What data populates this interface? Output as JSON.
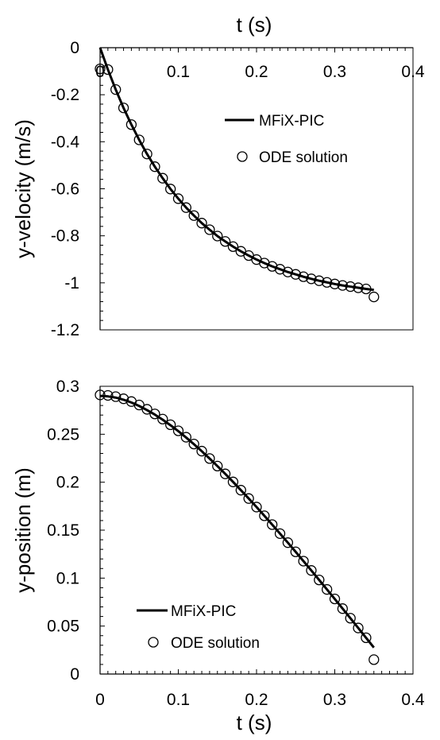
{
  "chart_data": [
    {
      "type": "line",
      "xlabel": "t (s)",
      "ylabel": "y-velocity  (m/s)",
      "x_axis_position": "top",
      "xlim": [
        0,
        0.4
      ],
      "ylim": [
        -1.2,
        0
      ],
      "x_ticks": [
        0,
        0.1,
        0.2,
        0.3,
        0.4
      ],
      "x_tick_labels": [
        "0",
        "0.1",
        "0.2",
        "0.3",
        "0.4"
      ],
      "y_ticks": [
        0,
        -0.2,
        -0.4,
        -0.6,
        -0.8,
        -1,
        -1.2
      ],
      "y_tick_labels": [
        "0",
        "-0.2",
        "-0.4",
        "-0.6",
        "-0.8",
        "-1",
        "-1.2"
      ],
      "grid": false,
      "legend_position": "top-right",
      "series": [
        {
          "name": "MFiX-PIC",
          "style": "solid-line",
          "color": "#000000",
          "x": [
            0,
            0.01,
            0.02,
            0.03,
            0.04,
            0.05,
            0.06,
            0.07,
            0.08,
            0.09,
            0.1,
            0.11,
            0.12,
            0.13,
            0.14,
            0.15,
            0.16,
            0.17,
            0.18,
            0.19,
            0.2,
            0.21,
            0.22,
            0.23,
            0.24,
            0.25,
            0.26,
            0.27,
            0.28,
            0.29,
            0.3,
            0.31,
            0.32,
            0.33,
            0.34,
            0.35
          ],
          "y": [
            0,
            -0.093,
            -0.178,
            -0.256,
            -0.327,
            -0.392,
            -0.452,
            -0.506,
            -0.555,
            -0.601,
            -0.642,
            -0.68,
            -0.714,
            -0.746,
            -0.774,
            -0.801,
            -0.824,
            -0.846,
            -0.866,
            -0.884,
            -0.901,
            -0.916,
            -0.93,
            -0.942,
            -0.954,
            -0.964,
            -0.974,
            -0.983,
            -0.991,
            -0.998,
            -1.005,
            -1.011,
            -1.016,
            -1.021,
            -1.026,
            -1.03
          ]
        },
        {
          "name": "ODE solution",
          "style": "open-circle",
          "color": "#000000",
          "x": [
            0,
            0.01,
            0.02,
            0.03,
            0.04,
            0.05,
            0.06,
            0.07,
            0.08,
            0.09,
            0.1,
            0.11,
            0.12,
            0.13,
            0.14,
            0.15,
            0.16,
            0.17,
            0.18,
            0.19,
            0.2,
            0.21,
            0.22,
            0.23,
            0.24,
            0.25,
            0.26,
            0.27,
            0.28,
            0.29,
            0.3,
            0.31,
            0.32,
            0.33,
            0.34,
            0.35
          ],
          "y": [
            -0.09,
            -0.093,
            -0.178,
            -0.256,
            -0.327,
            -0.392,
            -0.452,
            -0.506,
            -0.555,
            -0.601,
            -0.642,
            -0.68,
            -0.714,
            -0.746,
            -0.774,
            -0.801,
            -0.824,
            -0.846,
            -0.866,
            -0.884,
            -0.901,
            -0.916,
            -0.93,
            -0.942,
            -0.954,
            -0.964,
            -0.974,
            -0.983,
            -0.991,
            -0.998,
            -1.005,
            -1.011,
            -1.016,
            -1.021,
            -1.026,
            -1.06
          ]
        }
      ]
    },
    {
      "type": "line",
      "xlabel": "t (s)",
      "ylabel": "y-position  (m)",
      "x_axis_position": "bottom",
      "xlim": [
        0,
        0.4
      ],
      "ylim": [
        0,
        0.3
      ],
      "x_ticks": [
        0,
        0.1,
        0.2,
        0.3,
        0.4
      ],
      "x_tick_labels": [
        "0",
        "0.1",
        "0.2",
        "0.3",
        "0.4"
      ],
      "y_ticks": [
        0,
        0.05,
        0.1,
        0.15,
        0.2,
        0.25,
        0.3
      ],
      "y_tick_labels": [
        "0",
        "0.05",
        "0.1",
        "0.15",
        "0.2",
        "0.25",
        "0.3"
      ],
      "grid": false,
      "legend_position": "bottom-left",
      "series": [
        {
          "name": "MFiX-PIC",
          "style": "solid-line",
          "color": "#000000",
          "x": [
            0,
            0.01,
            0.02,
            0.03,
            0.04,
            0.05,
            0.06,
            0.07,
            0.08,
            0.09,
            0.1,
            0.11,
            0.12,
            0.13,
            0.14,
            0.15,
            0.16,
            0.17,
            0.18,
            0.19,
            0.2,
            0.21,
            0.22,
            0.23,
            0.24,
            0.25,
            0.26,
            0.27,
            0.28,
            0.29,
            0.3,
            0.31,
            0.32,
            0.33,
            0.34,
            0.35
          ],
          "y": [
            0.29,
            0.2895,
            0.2882,
            0.286,
            0.2831,
            0.2795,
            0.2752,
            0.2705,
            0.2652,
            0.2594,
            0.2532,
            0.2466,
            0.2396,
            0.2323,
            0.2247,
            0.2168,
            0.2087,
            0.2003,
            0.1917,
            0.183,
            0.1741,
            0.165,
            0.1558,
            0.1464,
            0.137,
            0.1274,
            0.1177,
            0.108,
            0.0981,
            0.0882,
            0.0783,
            0.0682,
            0.0582,
            0.048,
            0.0378,
            0.0276
          ]
        },
        {
          "name": "ODE solution",
          "style": "open-circle",
          "color": "#000000",
          "x": [
            0,
            0.01,
            0.02,
            0.03,
            0.04,
            0.05,
            0.06,
            0.07,
            0.08,
            0.09,
            0.1,
            0.11,
            0.12,
            0.13,
            0.14,
            0.15,
            0.16,
            0.17,
            0.18,
            0.19,
            0.2,
            0.21,
            0.22,
            0.23,
            0.24,
            0.25,
            0.26,
            0.27,
            0.28,
            0.29,
            0.3,
            0.31,
            0.32,
            0.33,
            0.34,
            0.35
          ],
          "y": [
            0.291,
            0.2905,
            0.2892,
            0.287,
            0.2841,
            0.2805,
            0.276,
            0.2712,
            0.2658,
            0.2599,
            0.2536,
            0.2469,
            0.2398,
            0.2324,
            0.2247,
            0.2168,
            0.2087,
            0.2003,
            0.1917,
            0.183,
            0.1741,
            0.165,
            0.1558,
            0.1464,
            0.137,
            0.1274,
            0.1177,
            0.108,
            0.0981,
            0.0882,
            0.0783,
            0.0682,
            0.0582,
            0.048,
            0.0378,
            0.015
          ]
        }
      ]
    }
  ]
}
